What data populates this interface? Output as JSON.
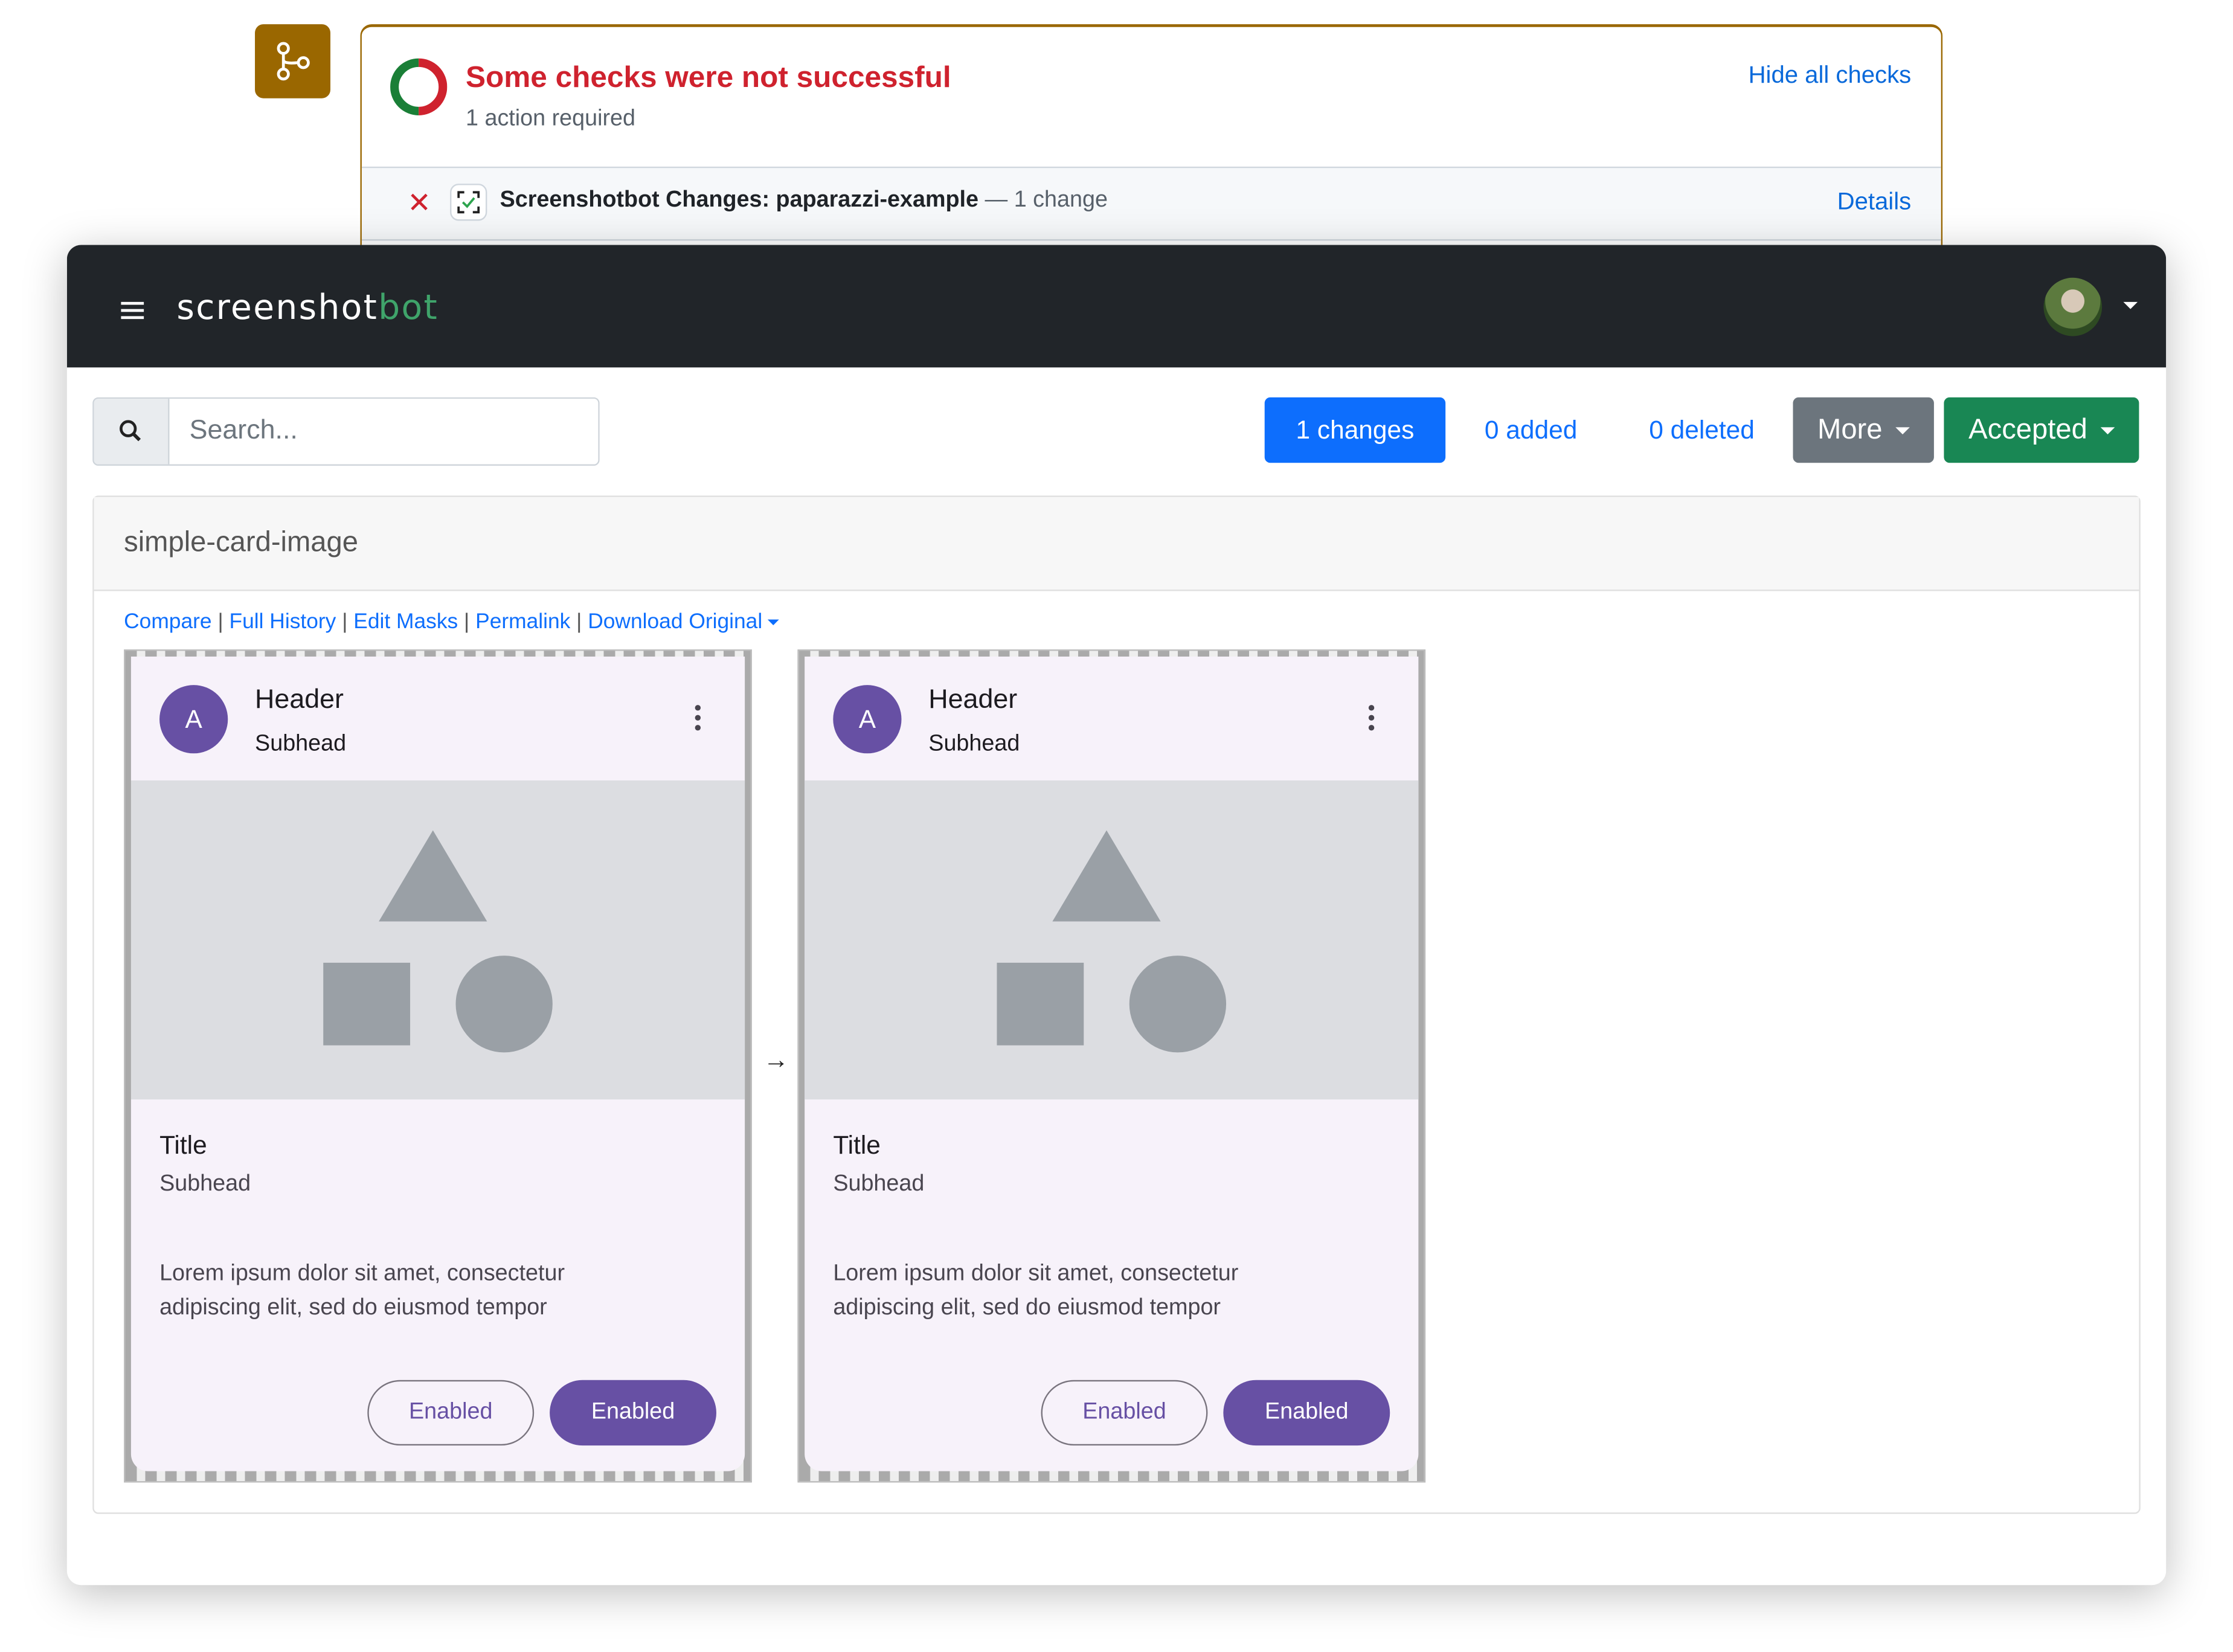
{
  "checks": {
    "title": "Some checks were not successful",
    "subtitle": "1 action required",
    "hide_label": "Hide all checks",
    "check_name": "Screenshotbot Changes: paparazzi-example",
    "check_sep": " — ",
    "check_meta": "1 change",
    "details_label": "Details",
    "colors": {
      "accent": "#9a6700",
      "fail": "#cf222e",
      "success": "#1a7f37",
      "link": "#0969da"
    }
  },
  "navbar": {
    "brand_main": "screenshot",
    "brand_accent": "bot"
  },
  "toolbar": {
    "search_placeholder": "Search...",
    "changes_label": "1 changes",
    "added_label": "0 added",
    "deleted_label": "0 deleted",
    "more_label": "More",
    "accepted_label": "Accepted"
  },
  "panel": {
    "title": "simple-card-image",
    "links": [
      "Compare",
      "Full History",
      "Edit Masks",
      "Permalink",
      "Download Original"
    ],
    "separator": "|"
  },
  "images": [
    {
      "avatar_letter": "A",
      "header": "Header",
      "subhead": "Subhead",
      "title": "Title",
      "title_subhead": "Subhead",
      "body": "Lorem ipsum dolor sit amet, consectetur adipiscing elit, sed do eiusmod tempor",
      "button_outlined": "Enabled",
      "button_filled": "Enabled"
    },
    {
      "avatar_letter": "A",
      "header": "Header",
      "subhead": "Subhead",
      "title": "Title",
      "title_subhead": "Subhead",
      "body": "Lorem ipsum dolor sit amet, consectetur adipiscing elit, sed do eiusmod tempor",
      "button_outlined": "Enabled",
      "button_filled": "Enabled"
    }
  ],
  "arrow": "→"
}
